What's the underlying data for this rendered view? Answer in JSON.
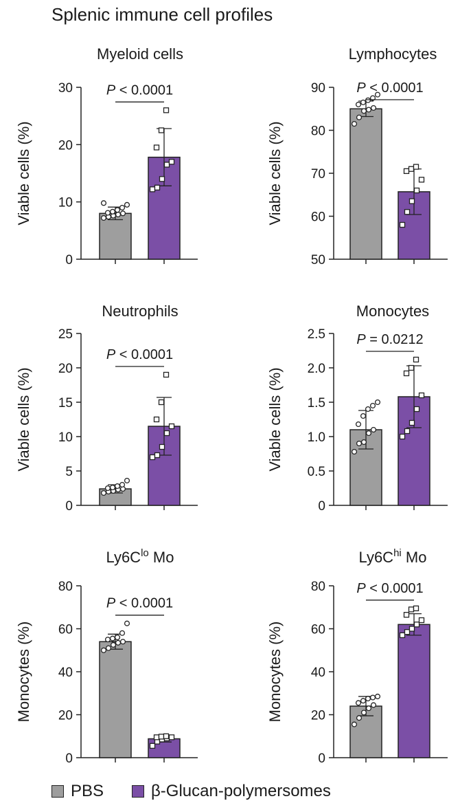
{
  "figure_title": "Splenic immune cell profiles",
  "legend": {
    "pbs": "PBS",
    "glucan": "β-Glucan-polymersomes",
    "pbs_color": "#9e9e9e",
    "glucan_color": "#7b4fa6"
  },
  "chart_data": [
    {
      "id": "myeloid",
      "type": "bar",
      "title": "Myeloid cells",
      "ylabel": "Viable cells (%)",
      "ylim": [
        0,
        30
      ],
      "yticks": [
        0,
        10,
        20,
        30
      ],
      "categories": [
        "PBS",
        "β-Glucan-polymersomes"
      ],
      "values": [
        8.0,
        17.8
      ],
      "errors": [
        1.1,
        5.0
      ],
      "pvalue": "< 0.0001",
      "points": [
        [
          7.2,
          7.4,
          7.6,
          7.8,
          8.0,
          8.1,
          8.3,
          8.6,
          9.0,
          9.5,
          9.8
        ],
        [
          12.2,
          12.5,
          14.0,
          16.5,
          17.0,
          19.5,
          22.5,
          26.0
        ]
      ]
    },
    {
      "id": "lymphocytes",
      "type": "bar",
      "title": "Lymphocytes",
      "ylabel": "Viable cells (%)",
      "ylim": [
        50,
        90
      ],
      "yticks": [
        50,
        60,
        70,
        80,
        90
      ],
      "categories": [
        "PBS",
        "β-Glucan-polymersomes"
      ],
      "values": [
        85.0,
        65.7
      ],
      "errors": [
        1.8,
        5.3
      ],
      "pvalue": "< 0.0001",
      "points": [
        [
          81.5,
          83.0,
          84.5,
          84.8,
          85.2,
          86.0,
          86.5,
          87.0,
          87.5,
          88.3
        ],
        [
          58.0,
          61.0,
          63.5,
          66.0,
          68.5,
          70.5,
          71.0,
          71.5
        ]
      ]
    },
    {
      "id": "neutrophils",
      "type": "bar",
      "title": "Neutrophils",
      "ylabel": "Viable cells (%)",
      "ylim": [
        0,
        25
      ],
      "yticks": [
        0,
        5,
        10,
        15,
        20,
        25
      ],
      "categories": [
        "PBS",
        "β-Glucan-polymersomes"
      ],
      "values": [
        2.4,
        11.5
      ],
      "errors": [
        0.6,
        4.2
      ],
      "pvalue": "< 0.0001",
      "points": [
        [
          1.8,
          2.0,
          2.1,
          2.3,
          2.4,
          2.5,
          2.6,
          2.8,
          3.0,
          3.6
        ],
        [
          7.0,
          7.3,
          8.5,
          10.5,
          11.5,
          12.5,
          15.0,
          19.0
        ]
      ]
    },
    {
      "id": "monocytes",
      "type": "bar",
      "title": "Monocytes",
      "ylabel": "Viable cells (%)",
      "ylim": [
        0,
        2.5
      ],
      "yticks": [
        0,
        0.5,
        1.0,
        1.5,
        2.0,
        2.5
      ],
      "tick_labels": [
        "0",
        "0.5",
        "1.0",
        "1.5",
        "2.0",
        "2.5"
      ],
      "categories": [
        "PBS",
        "β-Glucan-polymersomes"
      ],
      "values": [
        1.1,
        1.58
      ],
      "errors": [
        0.28,
        0.45
      ],
      "pvalue": "= 0.0212",
      "points": [
        [
          0.78,
          0.9,
          0.92,
          1.05,
          1.1,
          1.18,
          1.3,
          1.4,
          1.45,
          1.5
        ],
        [
          1.0,
          1.08,
          1.2,
          1.4,
          1.6,
          1.92,
          2.0,
          2.12
        ]
      ]
    },
    {
      "id": "ly6clo",
      "type": "bar",
      "title": "Ly6C",
      "title_sup": "lo",
      "title_after": " Mo",
      "ylabel": "Monocytes (%)",
      "ylim": [
        0,
        80
      ],
      "yticks": [
        0,
        20,
        40,
        60,
        80
      ],
      "categories": [
        "PBS",
        "β-Glucan-polymersomes"
      ],
      "values": [
        54.0,
        8.8
      ],
      "errors": [
        3.5,
        1.5
      ],
      "pvalue": "< 0.0001",
      "points": [
        [
          50.0,
          51.0,
          52.5,
          53.5,
          54.0,
          55.0,
          55.5,
          56.0,
          58.0,
          62.5
        ],
        [
          5.5,
          7.5,
          8.5,
          9.0,
          9.5,
          9.5,
          9.8,
          10.0
        ]
      ]
    },
    {
      "id": "ly6chi",
      "type": "bar",
      "title": "Ly6C",
      "title_sup": "hi",
      "title_after": " Mo",
      "ylabel": "Monocytes (%)",
      "ylim": [
        0,
        80
      ],
      "yticks": [
        0,
        20,
        40,
        60,
        80
      ],
      "categories": [
        "PBS",
        "β-Glucan-polymersomes"
      ],
      "values": [
        24.0,
        62.0
      ],
      "errors": [
        4.5,
        5.0
      ],
      "pvalue": "< 0.0001",
      "points": [
        [
          15.5,
          18.5,
          21.0,
          23.0,
          24.5,
          25.5,
          26.5,
          27.5,
          28.0,
          28.5
        ],
        [
          57.0,
          58.5,
          60.0,
          62.0,
          64.0,
          66.5,
          69.0,
          69.5
        ]
      ]
    }
  ]
}
